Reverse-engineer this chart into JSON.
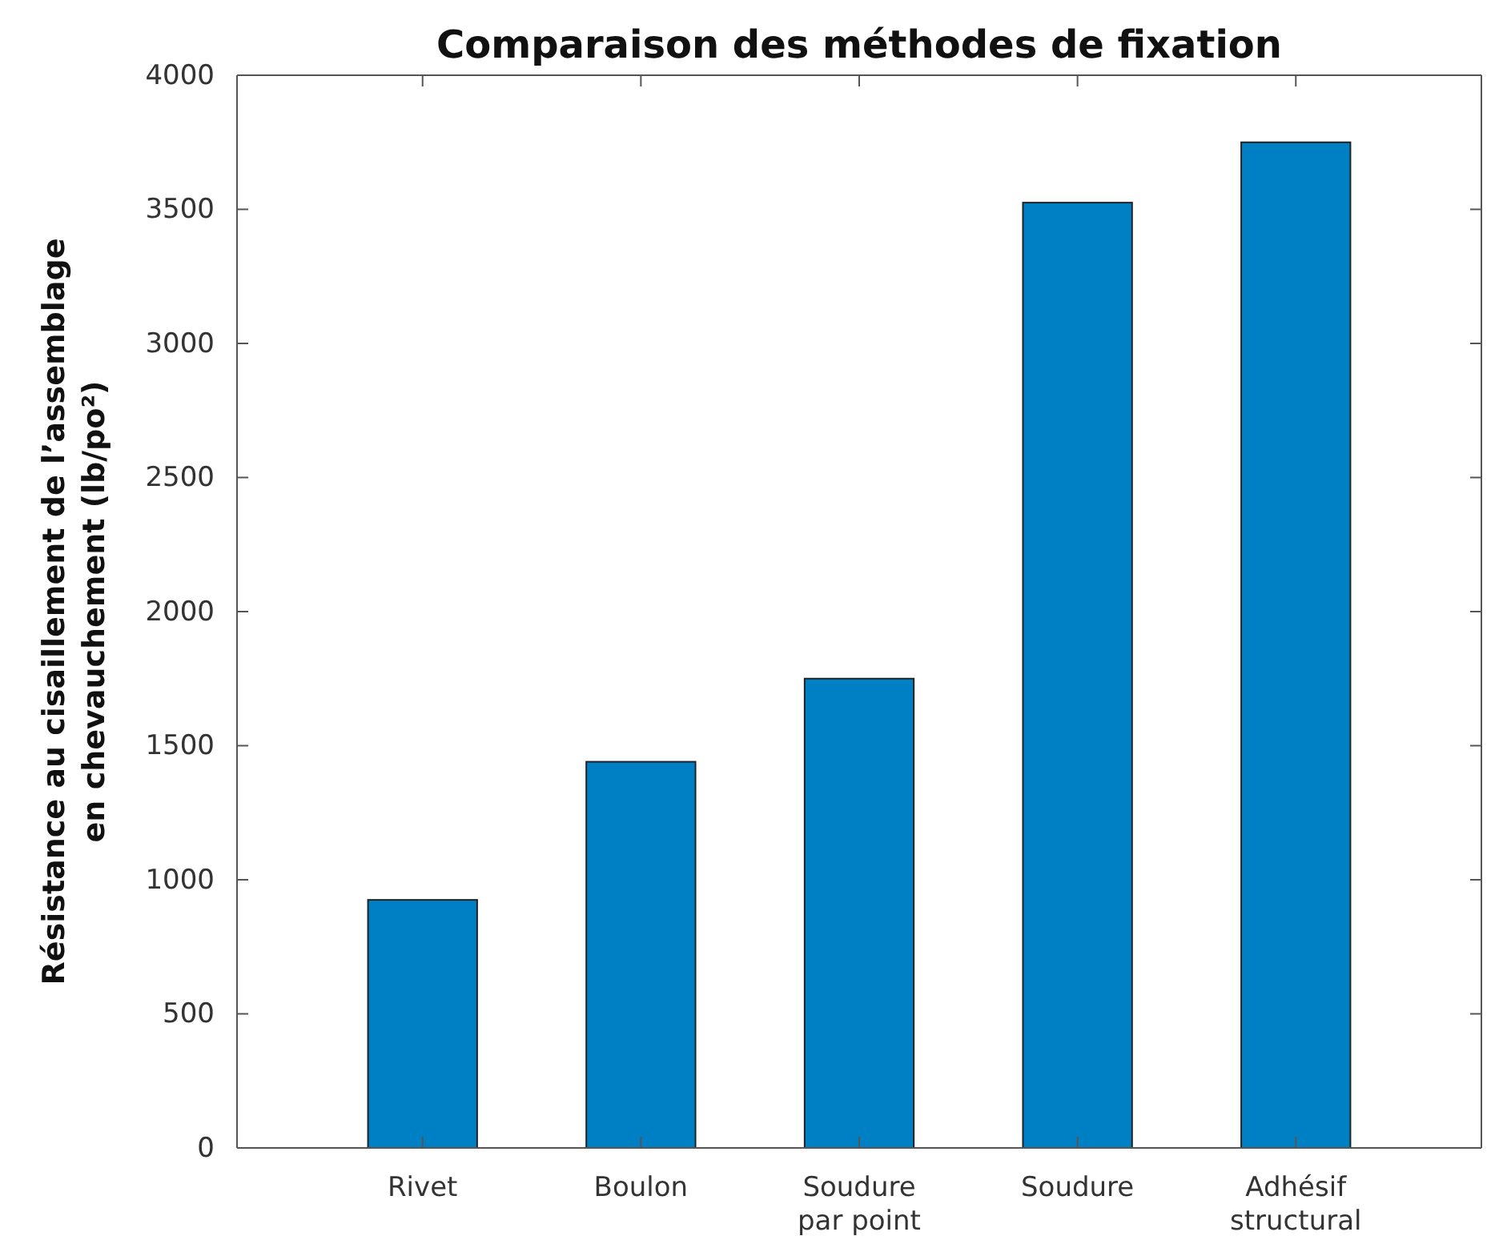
{
  "chart_data": {
    "type": "bar",
    "title": "Comparaison des méthodes de fixation",
    "ylabel": "Résistance au cisaillement de l’assemblage en chevauchement (lb/po²)",
    "categories": [
      "Rivet",
      "Boulon",
      "Soudure par point",
      "Soudure",
      "Adhésif structural"
    ],
    "values": [
      925,
      1440,
      1750,
      3525,
      3750
    ],
    "color": "#0080c4",
    "ylim": [
      0,
      4000
    ],
    "yticks": [
      0,
      500,
      1000,
      1500,
      2000,
      2500,
      3000,
      3500,
      4000
    ],
    "grid": false
  }
}
